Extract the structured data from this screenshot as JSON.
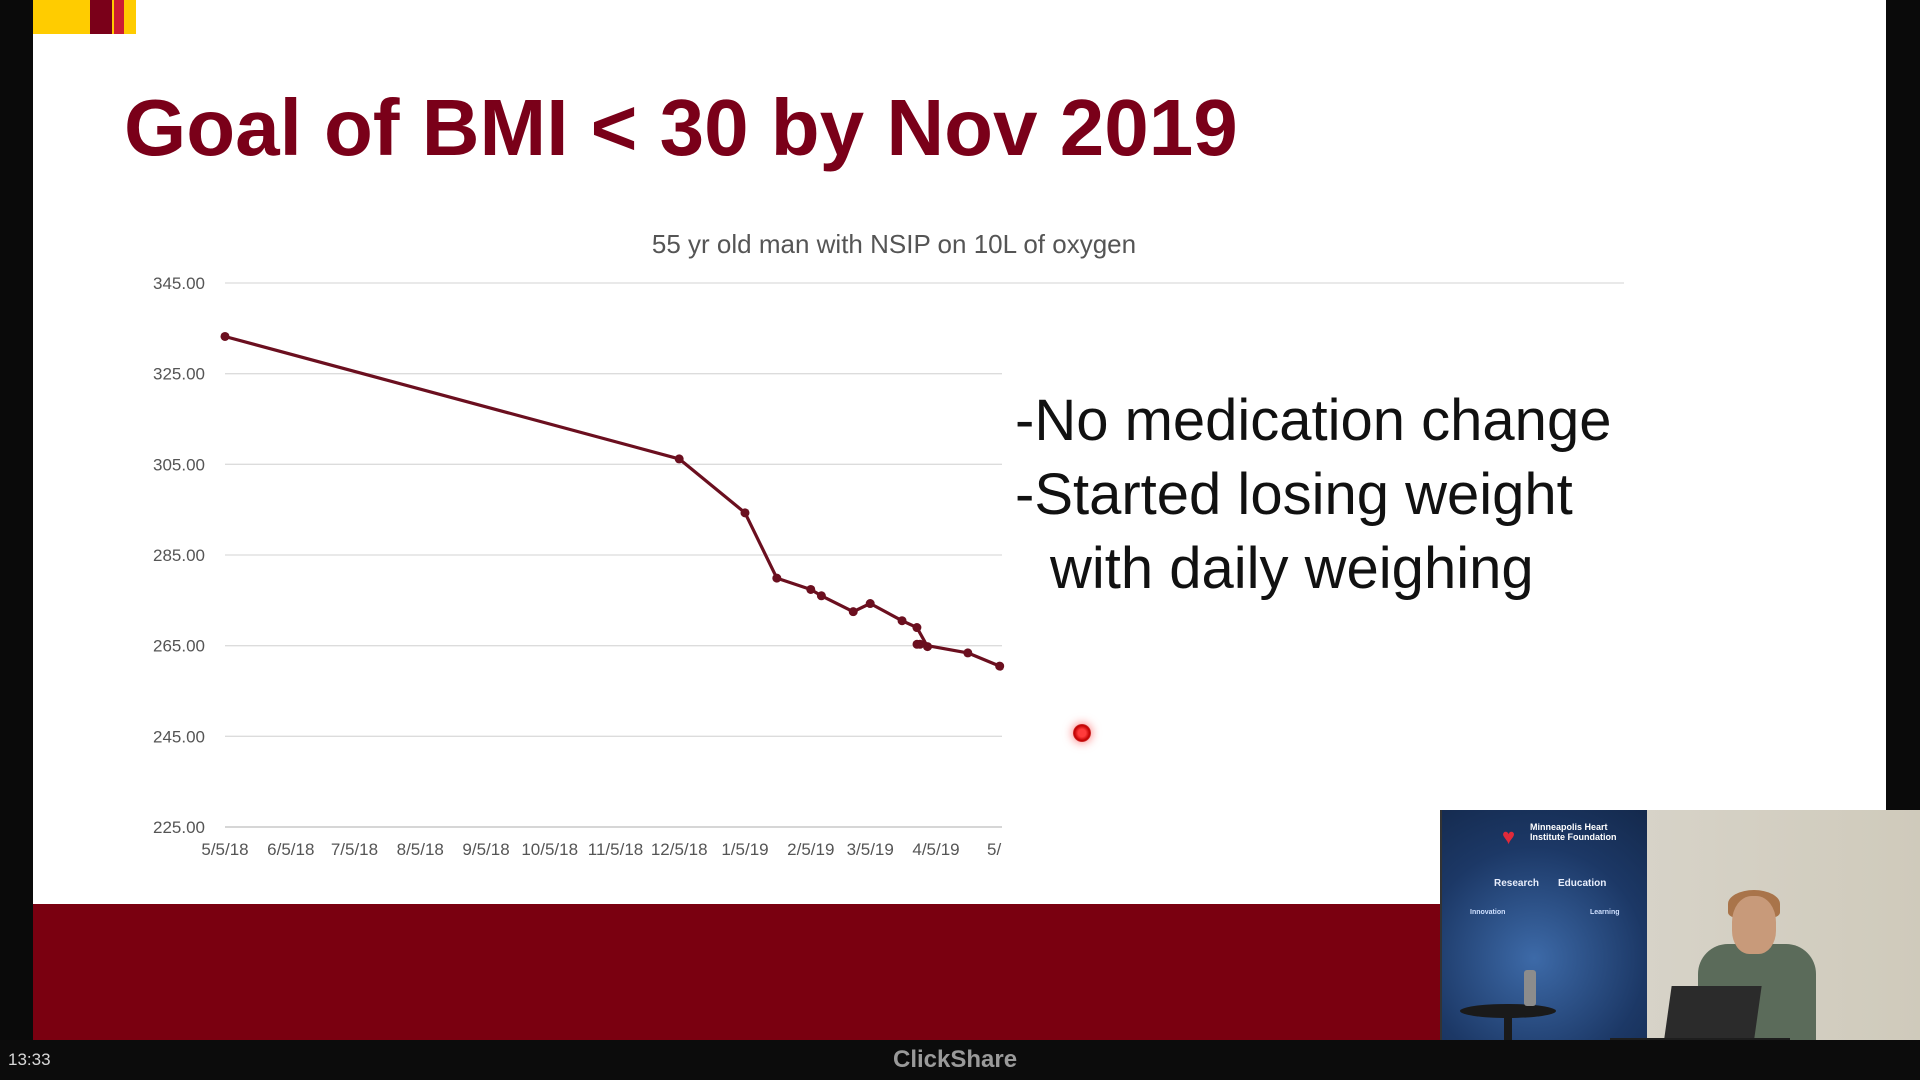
{
  "slide": {
    "title": "Goal of BMI < 30 by Nov 2019",
    "bullets": [
      "-No medication change",
      "-Started losing weight",
      "with daily weighing"
    ]
  },
  "statusbar": {
    "clock": "13:33",
    "brand": "ClickShare"
  },
  "pip": {
    "logo_text": "Minneapolis Heart Institute Foundation",
    "nav": [
      "Research",
      "Education"
    ],
    "sub": [
      "Innovation",
      "Learning"
    ]
  },
  "colors": {
    "brand_maroon": "#7a0019",
    "line": "#6b0f1f",
    "footer": "#7a0010",
    "gold": "#ffcc00"
  },
  "chart_data": {
    "type": "line",
    "title": "55 yr old man with NSIP on 10L of oxygen",
    "xlabel": "",
    "ylabel": "",
    "ylim": [
      225,
      345
    ],
    "yticks": [
      "345.00",
      "325.00",
      "305.00",
      "285.00",
      "265.00",
      "245.00",
      "225.00"
    ],
    "xticks": [
      "5/5/18",
      "6/5/18",
      "7/5/18",
      "8/5/18",
      "9/5/18",
      "10/5/18",
      "11/5/18",
      "12/5/18",
      "1/5/19",
      "2/5/19",
      "3/5/19",
      "4/5/19",
      "5/"
    ],
    "grid": true,
    "legend": "none",
    "series": [
      {
        "x": [
          "5/5/18",
          "12/5/18",
          "1/5/19",
          "1/20/19",
          "2/5/19",
          "2/10/19",
          "2/25/19",
          "3/5/19",
          "3/20/19",
          "3/27/19",
          "4/1/19",
          "4/5/19",
          "4/5/19",
          "4/20/19",
          "5/5/19",
          "5/5/19"
        ],
        "y": [
          333.2,
          306.2,
          294.3,
          279.9,
          277.4,
          276.0,
          272.5,
          274.3,
          270.5,
          269.0,
          264.8,
          265.3,
          265.3,
          263.4,
          260.5,
          259.6
        ],
        "markers": [
          true,
          true,
          true,
          true,
          true,
          true,
          true,
          true,
          true,
          true,
          true,
          true,
          true,
          true,
          true,
          false
        ]
      }
    ]
  }
}
